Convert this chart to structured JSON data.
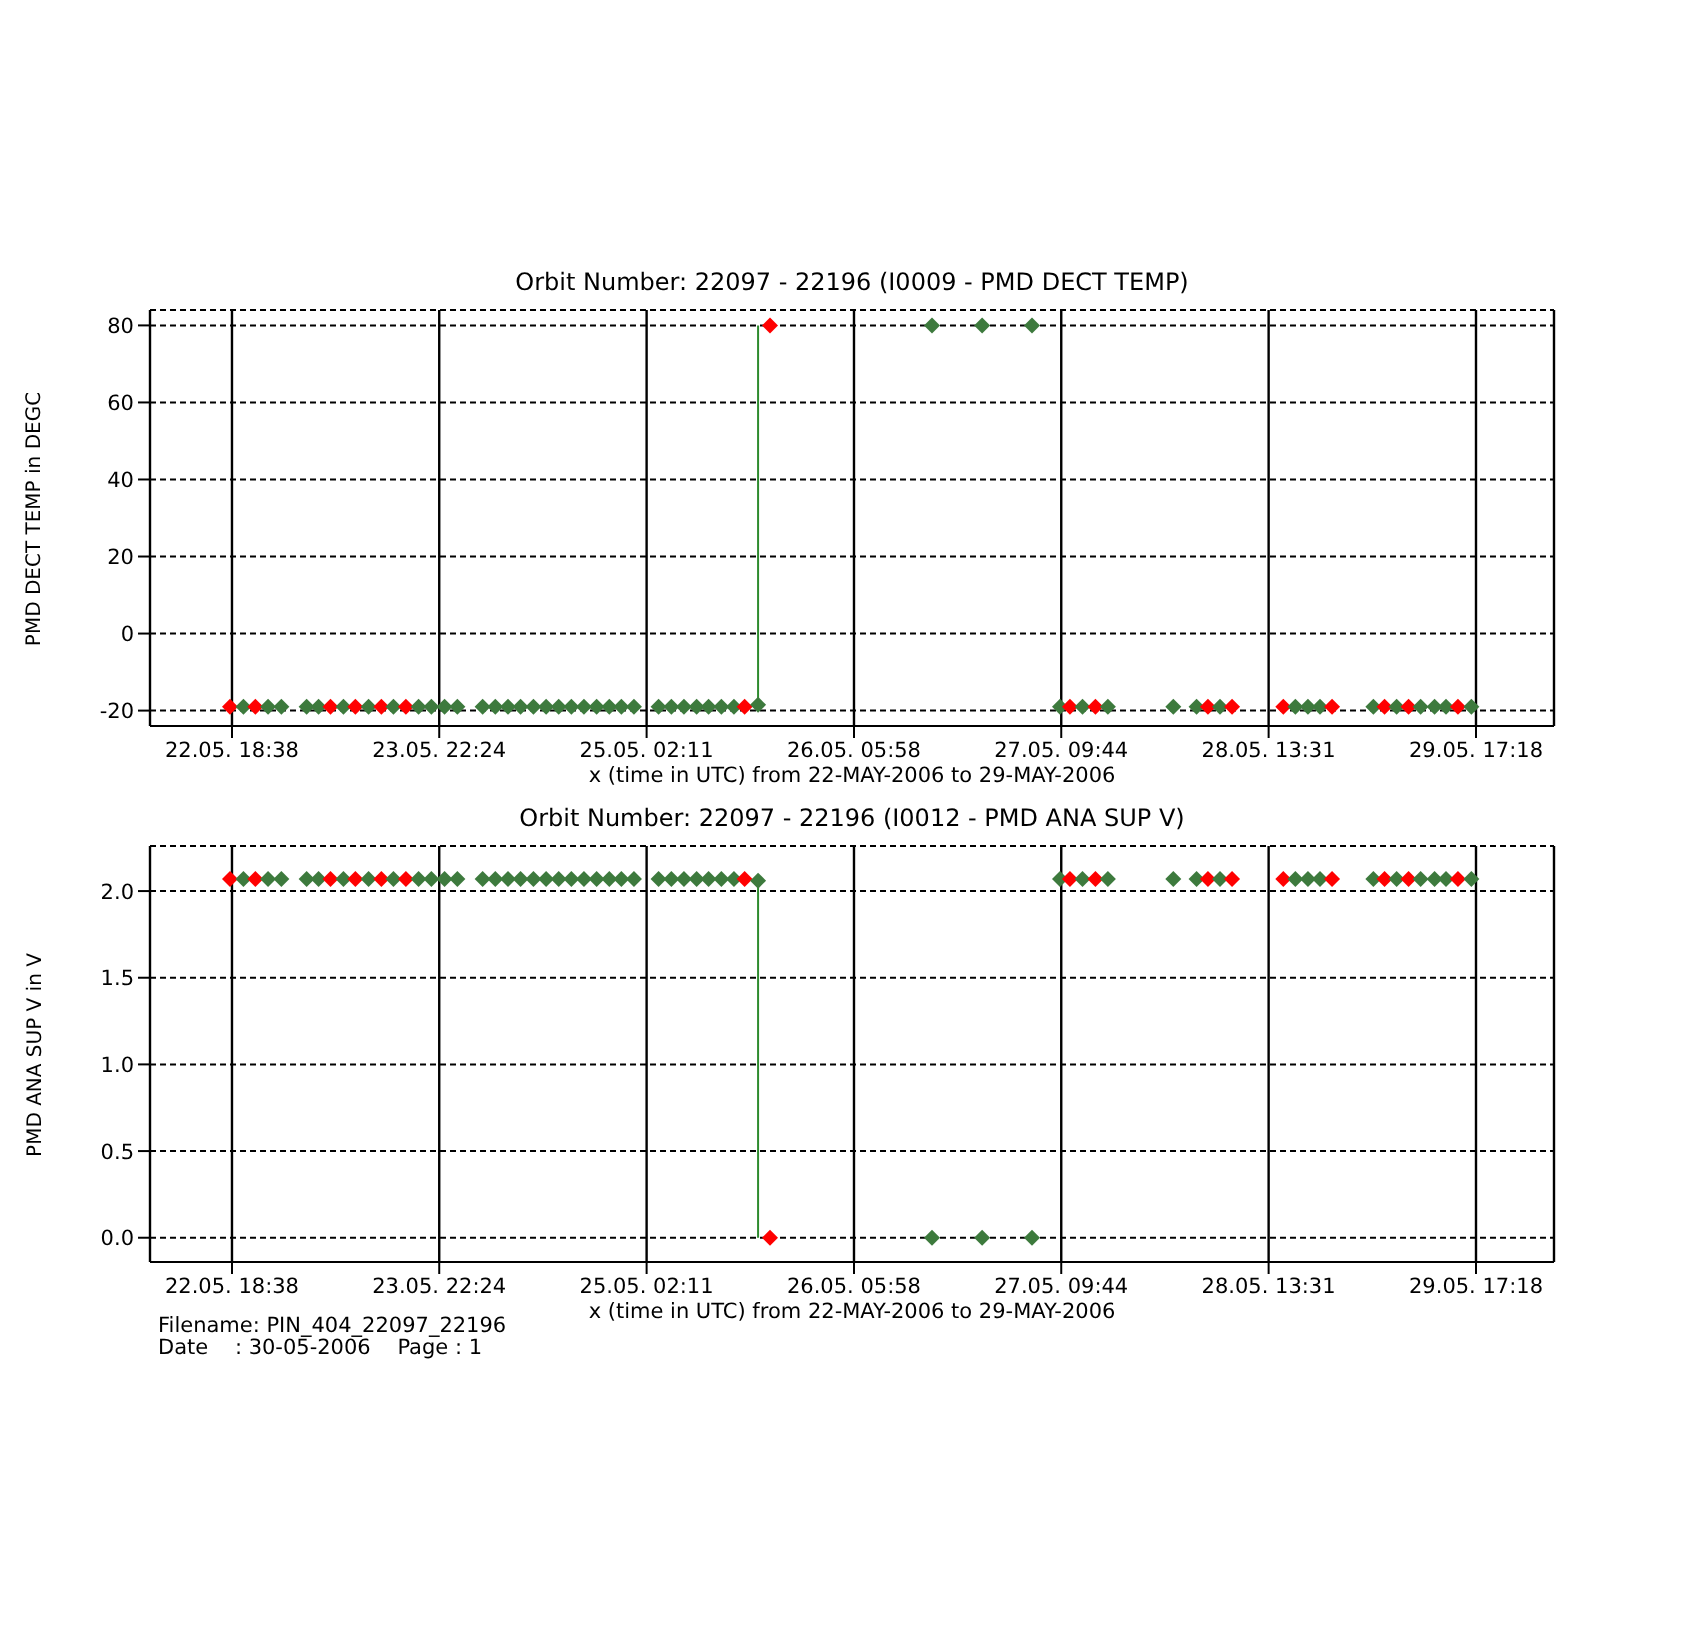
{
  "chart_data": [
    {
      "type": "scatter",
      "title": "Orbit Number: 22097 - 22196 (I0009 - PMD DECT TEMP)",
      "xlabel": "x (time in UTC) from 22-MAY-2006 to 29-MAY-2006",
      "ylabel": "PMD DECT TEMP in DEGC",
      "marker": "diamond",
      "grid": true,
      "xlim": [
        "2006-05-22T07:39",
        "2006-05-30T03:45"
      ],
      "xticks": [
        {
          "value": "2006-05-22T18:38",
          "label": "22.05. 18:38"
        },
        {
          "value": "2006-05-23T22:24",
          "label": "23.05. 22:24"
        },
        {
          "value": "2006-05-25T02:11",
          "label": "25.05. 02:11"
        },
        {
          "value": "2006-05-26T05:58",
          "label": "26.05. 05:58"
        },
        {
          "value": "2006-05-27T09:44",
          "label": "27.05. 09:44"
        },
        {
          "value": "2006-05-28T13:31",
          "label": "28.05. 13:31"
        },
        {
          "value": "2006-05-29T17:18",
          "label": "29.05. 17:18"
        }
      ],
      "ylim": [
        -24,
        84
      ],
      "yticks": [
        -20,
        0,
        20,
        40,
        60,
        80
      ],
      "series": [
        {
          "x": [
            "2006-05-22T18:22",
            "2006-05-22T20:10",
            "2006-05-22T21:46",
            "2006-05-22T23:28",
            "2006-05-23T01:15",
            "2006-05-23T04:38",
            "2006-05-23T06:14",
            "2006-05-23T07:50",
            "2006-05-23T09:34",
            "2006-05-23T11:10",
            "2006-05-23T12:56",
            "2006-05-23T14:39",
            "2006-05-23T16:16",
            "2006-05-23T17:56",
            "2006-05-23T19:38",
            "2006-05-23T21:21",
            "2006-05-23T23:07",
            "2006-05-24T00:50",
            "2006-05-24T04:13",
            "2006-05-24T05:55",
            "2006-05-24T07:37",
            "2006-05-24T09:18",
            "2006-05-24T11:01",
            "2006-05-24T12:43",
            "2006-05-24T14:24",
            "2006-05-24T16:06",
            "2006-05-24T17:47",
            "2006-05-24T19:29",
            "2006-05-24T21:11",
            "2006-05-24T22:48",
            "2006-05-25T00:29",
            "2006-05-25T03:47",
            "2006-05-25T05:30",
            "2006-05-25T07:11",
            "2006-05-25T08:53",
            "2006-05-25T10:29",
            "2006-05-25T12:12",
            "2006-05-25T13:53",
            "2006-05-25T15:19",
            "2006-05-25T17:07",
            "2006-05-25T18:43",
            "2006-05-26T16:25",
            "2006-05-26T23:08",
            "2006-05-27T05:49",
            "2006-05-27T09:34",
            "2006-05-27T10:54",
            "2006-05-27T12:35",
            "2006-05-27T14:19",
            "2006-05-27T15:59",
            "2006-05-28T00:45",
            "2006-05-28T03:52",
            "2006-05-28T05:23",
            "2006-05-28T07:00",
            "2006-05-28T08:37",
            "2006-05-28T15:29",
            "2006-05-28T17:06",
            "2006-05-28T18:47",
            "2006-05-28T20:24",
            "2006-05-28T22:01",
            "2006-05-29T03:33",
            "2006-05-29T05:03",
            "2006-05-29T06:40",
            "2006-05-29T08:16",
            "2006-05-29T09:53",
            "2006-05-29T11:45",
            "2006-05-29T13:17",
            "2006-05-29T14:53",
            "2006-05-29T16:41"
          ],
          "values": [
            -19,
            -19,
            -19,
            -19,
            -19,
            -19,
            -19,
            -19,
            -19,
            -19,
            -19,
            -19,
            -19,
            -19,
            -19,
            -19,
            -19,
            -19,
            -19,
            -19,
            -19,
            -19,
            -19,
            -19,
            -19,
            -19,
            -19,
            -19,
            -19,
            -19,
            -19,
            -19,
            -19,
            -19,
            -19,
            -19,
            -19,
            -19,
            -19,
            -18.5,
            80,
            80,
            80,
            80,
            -19,
            -19,
            -19,
            -19,
            -19,
            -19,
            -19,
            -19,
            -19,
            -19,
            -19,
            -19,
            -19,
            -19,
            -19,
            -19,
            -19,
            -19,
            -19,
            -19,
            -19,
            -19,
            -19,
            -19
          ],
          "colors": [
            "#ff0000",
            "#3d7a3d",
            "#ff0000",
            "#3d7a3d",
            "#3d7a3d",
            "#3d7a3d",
            "#3d7a3d",
            "#ff0000",
            "#3d7a3d",
            "#ff0000",
            "#3d7a3d",
            "#ff0000",
            "#3d7a3d",
            "#ff0000",
            "#3d7a3d",
            "#3d7a3d",
            "#3d7a3d",
            "#3d7a3d",
            "#3d7a3d",
            "#3d7a3d",
            "#3d7a3d",
            "#3d7a3d",
            "#3d7a3d",
            "#3d7a3d",
            "#3d7a3d",
            "#3d7a3d",
            "#3d7a3d",
            "#3d7a3d",
            "#3d7a3d",
            "#3d7a3d",
            "#3d7a3d",
            "#3d7a3d",
            "#3d7a3d",
            "#3d7a3d",
            "#3d7a3d",
            "#3d7a3d",
            "#3d7a3d",
            "#3d7a3d",
            "#ff0000",
            "#3d7a3d",
            "#ff0000",
            "#3d7a3d",
            "#3d7a3d",
            "#3d7a3d",
            "#3d7a3d",
            "#ff0000",
            "#3d7a3d",
            "#ff0000",
            "#3d7a3d",
            "#3d7a3d",
            "#3d7a3d",
            "#ff0000",
            "#3d7a3d",
            "#ff0000",
            "#ff0000",
            "#3d7a3d",
            "#3d7a3d",
            "#3d7a3d",
            "#ff0000",
            "#3d7a3d",
            "#ff0000",
            "#3d7a3d",
            "#ff0000",
            "#3d7a3d",
            "#3d7a3d",
            "#3d7a3d",
            "#ff0000",
            "#3d7a3d"
          ]
        },
        {
          "type": "line",
          "marker": "none",
          "color": "#2e8b2e",
          "x": [
            "2006-05-25T17:07",
            "2006-05-25T17:07"
          ],
          "values": [
            -18.5,
            80
          ]
        }
      ]
    },
    {
      "type": "scatter",
      "title": "Orbit Number: 22097 - 22196 (I0012 - PMD ANA SUP V)",
      "xlabel": "x (time in UTC) from 22-MAY-2006 to 29-MAY-2006",
      "ylabel": "PMD ANA SUP V in V",
      "marker": "diamond",
      "grid": true,
      "xlim": [
        "2006-05-22T07:39",
        "2006-05-30T03:45"
      ],
      "xticks": [
        {
          "value": "2006-05-22T18:38",
          "label": "22.05. 18:38"
        },
        {
          "value": "2006-05-23T22:24",
          "label": "23.05. 22:24"
        },
        {
          "value": "2006-05-25T02:11",
          "label": "25.05. 02:11"
        },
        {
          "value": "2006-05-26T05:58",
          "label": "26.05. 05:58"
        },
        {
          "value": "2006-05-27T09:44",
          "label": "27.05. 09:44"
        },
        {
          "value": "2006-05-28T13:31",
          "label": "28.05. 13:31"
        },
        {
          "value": "2006-05-29T17:18",
          "label": "29.05. 17:18"
        }
      ],
      "ylim": [
        -0.14,
        2.26
      ],
      "yticks": [
        {
          "value": 0,
          "label": "0.0"
        },
        0.5,
        {
          "value": 1,
          "label": "1.0"
        },
        1.5,
        {
          "value": 2,
          "label": "2.0"
        }
      ],
      "annotations": [
        "Filename: PIN_404_22097_22196",
        "Date    : 30-05-2006    Page : 1"
      ],
      "series": [
        {
          "x": [
            "2006-05-22T18:22",
            "2006-05-22T20:10",
            "2006-05-22T21:46",
            "2006-05-22T23:28",
            "2006-05-23T01:15",
            "2006-05-23T04:38",
            "2006-05-23T06:14",
            "2006-05-23T07:50",
            "2006-05-23T09:34",
            "2006-05-23T11:10",
            "2006-05-23T12:56",
            "2006-05-23T14:39",
            "2006-05-23T16:16",
            "2006-05-23T17:56",
            "2006-05-23T19:38",
            "2006-05-23T21:21",
            "2006-05-23T23:07",
            "2006-05-24T00:50",
            "2006-05-24T04:13",
            "2006-05-24T05:55",
            "2006-05-24T07:37",
            "2006-05-24T09:18",
            "2006-05-24T11:01",
            "2006-05-24T12:43",
            "2006-05-24T14:24",
            "2006-05-24T16:06",
            "2006-05-24T17:47",
            "2006-05-24T19:29",
            "2006-05-24T21:11",
            "2006-05-24T22:48",
            "2006-05-25T00:29",
            "2006-05-25T03:47",
            "2006-05-25T05:30",
            "2006-05-25T07:11",
            "2006-05-25T08:53",
            "2006-05-25T10:29",
            "2006-05-25T12:12",
            "2006-05-25T13:53",
            "2006-05-25T15:19",
            "2006-05-25T17:07",
            "2006-05-25T18:43",
            "2006-05-26T16:25",
            "2006-05-26T23:08",
            "2006-05-27T05:49",
            "2006-05-27T09:34",
            "2006-05-27T10:54",
            "2006-05-27T12:35",
            "2006-05-27T14:19",
            "2006-05-27T15:59",
            "2006-05-28T00:45",
            "2006-05-28T03:52",
            "2006-05-28T05:23",
            "2006-05-28T07:00",
            "2006-05-28T08:37",
            "2006-05-28T15:29",
            "2006-05-28T17:06",
            "2006-05-28T18:47",
            "2006-05-28T20:24",
            "2006-05-28T22:01",
            "2006-05-29T03:33",
            "2006-05-29T05:03",
            "2006-05-29T06:40",
            "2006-05-29T08:16",
            "2006-05-29T09:53",
            "2006-05-29T11:45",
            "2006-05-29T13:17",
            "2006-05-29T14:53",
            "2006-05-29T16:41"
          ],
          "values": [
            2.07,
            2.07,
            2.07,
            2.07,
            2.07,
            2.07,
            2.07,
            2.07,
            2.07,
            2.07,
            2.07,
            2.07,
            2.07,
            2.07,
            2.07,
            2.07,
            2.07,
            2.07,
            2.07,
            2.07,
            2.07,
            2.07,
            2.07,
            2.07,
            2.07,
            2.07,
            2.07,
            2.07,
            2.07,
            2.07,
            2.07,
            2.07,
            2.07,
            2.07,
            2.07,
            2.07,
            2.07,
            2.07,
            2.07,
            2.06,
            0,
            0,
            0,
            0,
            2.07,
            2.07,
            2.07,
            2.07,
            2.07,
            2.07,
            2.07,
            2.07,
            2.07,
            2.07,
            2.07,
            2.07,
            2.07,
            2.07,
            2.07,
            2.07,
            2.07,
            2.07,
            2.07,
            2.07,
            2.07,
            2.07,
            2.07,
            2.07
          ],
          "colors": [
            "#ff0000",
            "#3d7a3d",
            "#ff0000",
            "#3d7a3d",
            "#3d7a3d",
            "#3d7a3d",
            "#3d7a3d",
            "#ff0000",
            "#3d7a3d",
            "#ff0000",
            "#3d7a3d",
            "#ff0000",
            "#3d7a3d",
            "#ff0000",
            "#3d7a3d",
            "#3d7a3d",
            "#3d7a3d",
            "#3d7a3d",
            "#3d7a3d",
            "#3d7a3d",
            "#3d7a3d",
            "#3d7a3d",
            "#3d7a3d",
            "#3d7a3d",
            "#3d7a3d",
            "#3d7a3d",
            "#3d7a3d",
            "#3d7a3d",
            "#3d7a3d",
            "#3d7a3d",
            "#3d7a3d",
            "#3d7a3d",
            "#3d7a3d",
            "#3d7a3d",
            "#3d7a3d",
            "#3d7a3d",
            "#3d7a3d",
            "#3d7a3d",
            "#ff0000",
            "#3d7a3d",
            "#ff0000",
            "#3d7a3d",
            "#3d7a3d",
            "#3d7a3d",
            "#3d7a3d",
            "#ff0000",
            "#3d7a3d",
            "#ff0000",
            "#3d7a3d",
            "#3d7a3d",
            "#3d7a3d",
            "#ff0000",
            "#3d7a3d",
            "#ff0000",
            "#ff0000",
            "#3d7a3d",
            "#3d7a3d",
            "#3d7a3d",
            "#ff0000",
            "#3d7a3d",
            "#ff0000",
            "#3d7a3d",
            "#ff0000",
            "#3d7a3d",
            "#3d7a3d",
            "#3d7a3d",
            "#ff0000",
            "#3d7a3d"
          ]
        },
        {
          "type": "line",
          "marker": "none",
          "color": "#2e8b2e",
          "x": [
            "2006-05-25T17:07",
            "2006-05-25T17:07"
          ],
          "values": [
            2.06,
            0
          ]
        }
      ]
    }
  ]
}
